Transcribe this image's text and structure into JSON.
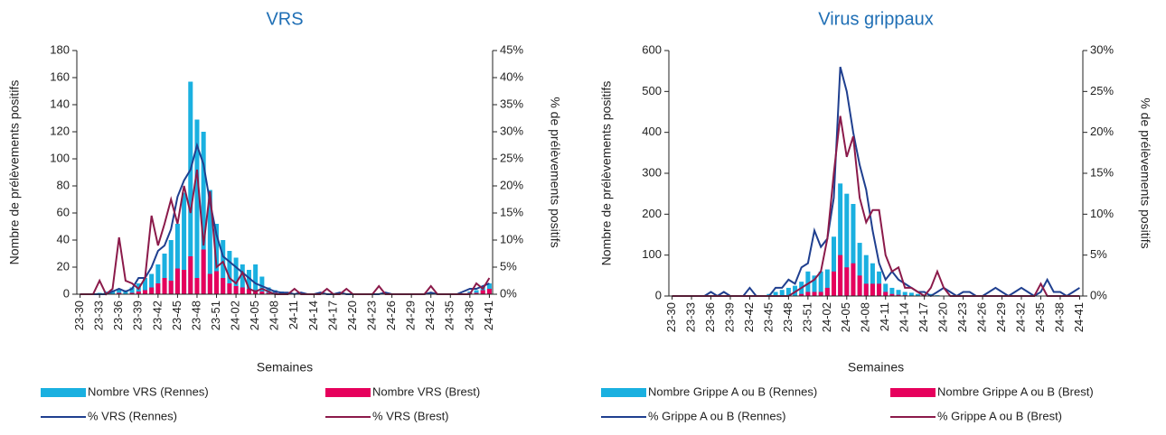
{
  "chart_data": [
    {
      "type": "bar",
      "title": "VRS",
      "x_label": "Semaines",
      "y_label": "Nombre de prélèvements positifs",
      "y2_label": "% de prélèvements positifs",
      "categories": [
        "23-30",
        null,
        null,
        "23-33",
        null,
        null,
        "23-36",
        null,
        null,
        "23-39",
        null,
        null,
        "23-42",
        null,
        null,
        "23-45",
        null,
        null,
        "23-48",
        null,
        null,
        "23-51",
        null,
        null,
        "24-02",
        null,
        null,
        "24-05",
        null,
        null,
        "24-08",
        null,
        null,
        "24-11",
        null,
        null,
        "24-14",
        null,
        null,
        "24-17",
        null,
        null,
        "24-20",
        null,
        null,
        "24-23",
        null,
        null,
        "24-26",
        null,
        null,
        "24-29",
        null,
        null,
        "24-32",
        null,
        null,
        "24-35",
        null,
        null,
        "24-38",
        null,
        null,
        "24-41"
      ],
      "ylim": [
        0,
        180
      ],
      "yticks": [
        0,
        20,
        40,
        60,
        80,
        100,
        120,
        140,
        160,
        180
      ],
      "y2lim": [
        0,
        45
      ],
      "y2ticks": [
        {
          "value": 0,
          "label": "0%"
        },
        {
          "value": 5,
          "label": "5%"
        },
        {
          "value": 10,
          "label": "10%"
        },
        {
          "value": 15,
          "label": "15%"
        },
        {
          "value": 20,
          "label": "20%"
        },
        {
          "value": 25,
          "label": "25%"
        },
        {
          "value": 30,
          "label": "30%"
        },
        {
          "value": 35,
          "label": "35%"
        },
        {
          "value": 40,
          "label": "40%"
        },
        {
          "value": 45,
          "label": "45%"
        }
      ],
      "series": [
        {
          "name": "Nombre VRS (Rennes)",
          "type": "bar",
          "color": "#1ab0e0",
          "values": [
            0,
            0,
            0,
            1,
            2,
            3,
            4,
            3,
            5,
            8,
            12,
            15,
            22,
            30,
            40,
            52,
            75,
            157,
            129,
            120,
            77,
            52,
            40,
            32,
            27,
            22,
            18,
            22,
            13,
            5,
            3,
            2,
            1,
            0,
            1,
            0,
            0,
            1,
            0,
            0,
            1,
            0,
            0,
            0,
            0,
            0,
            0,
            1,
            0,
            0,
            0,
            0,
            0,
            0,
            1,
            0,
            0,
            0,
            0,
            0,
            2,
            3,
            6,
            8
          ]
        },
        {
          "name": "Nombre VRS (Brest)",
          "type": "bar",
          "color": "#e6005c",
          "values": [
            0,
            0,
            0,
            0,
            0,
            0,
            1,
            0,
            1,
            2,
            3,
            5,
            8,
            12,
            10,
            19,
            18,
            28,
            12,
            33,
            15,
            17,
            12,
            8,
            6,
            5,
            4,
            3,
            2,
            1,
            1,
            0,
            0,
            0,
            0,
            0,
            0,
            0,
            0,
            0,
            0,
            0,
            0,
            0,
            0,
            0,
            0,
            0,
            0,
            0,
            0,
            0,
            0,
            0,
            0,
            0,
            0,
            0,
            0,
            0,
            1,
            1,
            3,
            4
          ]
        },
        {
          "name": "% VRS (Rennes)",
          "type": "line",
          "axis": "y2",
          "color": "#1f3f8f",
          "values": [
            0,
            0,
            0,
            0,
            0,
            0.5,
            1,
            0.5,
            1,
            3,
            3,
            5,
            8,
            9,
            12,
            18,
            21,
            23,
            27.5,
            24,
            17,
            11,
            7,
            6,
            5,
            4,
            3,
            2,
            1.5,
            1,
            0.5,
            0.3,
            0.3,
            0,
            0.3,
            0,
            0,
            0.3,
            0,
            0,
            0.3,
            0,
            0,
            0,
            0,
            0,
            0,
            0.3,
            0,
            0,
            0,
            0,
            0,
            0,
            0.3,
            0,
            0,
            0,
            0,
            0.5,
            1,
            1,
            1.5,
            2
          ]
        },
        {
          "name": "% VRS (Brest)",
          "type": "line",
          "axis": "y2",
          "color": "#8b1a4a",
          "values": [
            0,
            0,
            0,
            2.5,
            0,
            1,
            10.5,
            2.5,
            2,
            1,
            3,
            14.5,
            9,
            13,
            17.5,
            13,
            20,
            15,
            23,
            9,
            19,
            5,
            6,
            3,
            2,
            4,
            1,
            0.5,
            1,
            0.5,
            0,
            0,
            0,
            1,
            0,
            0,
            0,
            0,
            1,
            0,
            0,
            1,
            0,
            0,
            0,
            0,
            1.5,
            0,
            0,
            0,
            0,
            0,
            0,
            0,
            1.5,
            0,
            0,
            0,
            0,
            0,
            0,
            2,
            1,
            3
          ]
        }
      ]
    },
    {
      "type": "bar",
      "title": "Virus grippaux",
      "x_label": "Semaines",
      "y_label": "Nombre de prélèvements positifs",
      "y2_label": "% de prélèvements positifs",
      "categories": [
        "23-30",
        null,
        null,
        "23-33",
        null,
        null,
        "23-36",
        null,
        null,
        "23-39",
        null,
        null,
        "23-42",
        null,
        null,
        "23-45",
        null,
        null,
        "23-48",
        null,
        null,
        "23-51",
        null,
        null,
        "24-02",
        null,
        null,
        "24-05",
        null,
        null,
        "24-08",
        null,
        null,
        "24-11",
        null,
        null,
        "24-14",
        null,
        null,
        "24-17",
        null,
        null,
        "24-20",
        null,
        null,
        "24-23",
        null,
        null,
        "24-26",
        null,
        null,
        "24-29",
        null,
        null,
        "24-32",
        null,
        null,
        "24-35",
        null,
        null,
        "24-38",
        null,
        null,
        "24-41"
      ],
      "ylim": [
        0,
        600
      ],
      "yticks": [
        0,
        100,
        200,
        300,
        400,
        500,
        600
      ],
      "y2lim": [
        0,
        30
      ],
      "y2ticks": [
        {
          "value": 0,
          "label": "0%"
        },
        {
          "value": 5,
          "label": "5%"
        },
        {
          "value": 10,
          "label": "10%"
        },
        {
          "value": 15,
          "label": "15%"
        },
        {
          "value": 20,
          "label": "20%"
        },
        {
          "value": 25,
          "label": "25%"
        },
        {
          "value": 30,
          "label": "30%"
        }
      ],
      "series": [
        {
          "name": "Nombre Grippe A ou B (Rennes)",
          "type": "bar",
          "color": "#1ab0e0",
          "values": [
            0,
            0,
            0,
            0,
            0,
            0,
            0,
            0,
            0,
            0,
            0,
            0,
            0,
            0,
            0,
            5,
            10,
            15,
            20,
            25,
            35,
            60,
            50,
            60,
            65,
            145,
            275,
            250,
            225,
            130,
            100,
            80,
            60,
            30,
            20,
            15,
            10,
            8,
            5,
            2,
            5,
            2,
            0,
            0,
            0,
            0,
            0,
            0,
            0,
            0,
            0,
            0,
            0,
            0,
            0,
            0,
            0,
            0,
            0,
            0,
            0,
            0,
            0,
            0
          ]
        },
        {
          "name": "Nombre Grippe A ou B (Brest)",
          "type": "bar",
          "color": "#e6005c",
          "values": [
            0,
            0,
            0,
            0,
            0,
            0,
            0,
            0,
            0,
            0,
            0,
            0,
            0,
            0,
            0,
            0,
            0,
            0,
            0,
            0,
            5,
            10,
            10,
            10,
            20,
            60,
            100,
            70,
            80,
            50,
            30,
            30,
            30,
            10,
            5,
            3,
            2,
            0,
            0,
            0,
            0,
            0,
            0,
            0,
            0,
            0,
            0,
            0,
            0,
            0,
            0,
            0,
            0,
            0,
            0,
            0,
            0,
            0,
            0,
            0,
            0,
            0,
            0,
            0
          ]
        },
        {
          "name": "% Grippe A ou B (Rennes)",
          "type": "line",
          "axis": "y2",
          "color": "#1f3f8f",
          "values": [
            0,
            0,
            0,
            0,
            0,
            0,
            0.5,
            0,
            0.5,
            0,
            0,
            0,
            1,
            0,
            0,
            0,
            1,
            1,
            2,
            1.5,
            3.5,
            4,
            8,
            6,
            7,
            12,
            28,
            25,
            20,
            16,
            13,
            8,
            4,
            2,
            3,
            2,
            1.5,
            1,
            0.5,
            0.5,
            0,
            0.5,
            1,
            0.5,
            0,
            0.5,
            0.5,
            0,
            0,
            0.5,
            1,
            0.5,
            0,
            0.5,
            1,
            0.5,
            0,
            0.5,
            2,
            0.5,
            0.5,
            0,
            0.5,
            1
          ]
        },
        {
          "name": "% Grippe A ou B (Brest)",
          "type": "line",
          "axis": "y2",
          "color": "#8b1a4a",
          "values": [
            0,
            0,
            0,
            0,
            0,
            0,
            0,
            0,
            0,
            0,
            0,
            0,
            0,
            0,
            0,
            0,
            0,
            0,
            0,
            0.5,
            1,
            1.5,
            2,
            3,
            7,
            15,
            22,
            17,
            19.5,
            12,
            9,
            10.5,
            10.5,
            5,
            3,
            3.5,
            1,
            1,
            0.5,
            0,
            1,
            3,
            1,
            0,
            0,
            0,
            0,
            0,
            0,
            0,
            0,
            0,
            0,
            0,
            0,
            0,
            0,
            1.5,
            0,
            0,
            0,
            0,
            0,
            0
          ]
        }
      ]
    }
  ]
}
